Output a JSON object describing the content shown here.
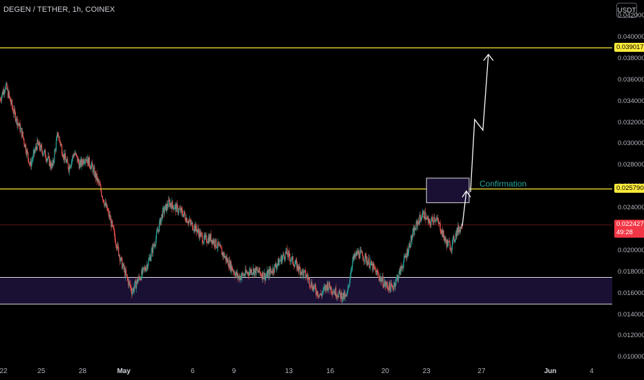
{
  "header": {
    "symbol_line": "DEGEN / TETHER, 1h, COINEX",
    "currency_button": "USDT"
  },
  "colors": {
    "background": "#000000",
    "up": "#26a69a",
    "down": "#ef5350",
    "level_line": "#ffeb3b",
    "zone_fill": "#1a1033",
    "zone_border": "#e0e0e0",
    "price_line": "#f23645",
    "arrow": "#ffffff"
  },
  "chart_data": {
    "type": "candlestick",
    "title": "DEGEN / TETHER, 1h, COINEX",
    "ylim": [
      0.0095,
      0.0435
    ],
    "y_ticks": [
      "0.042000",
      "0.040000",
      "0.038000",
      "0.036000",
      "0.034000",
      "0.032000",
      "0.030000",
      "0.028000",
      "0.026000",
      "0.024000",
      "0.022000",
      "0.020000",
      "0.018000",
      "0.016000",
      "0.014000",
      "0.012000",
      "0.010000"
    ],
    "y_tick_values": [
      0.042,
      0.04,
      0.038,
      0.036,
      0.034,
      0.032,
      0.03,
      0.028,
      0.026,
      0.024,
      0.022,
      0.02,
      0.018,
      0.016,
      0.014,
      0.012,
      0.01
    ],
    "x_ticks": [
      {
        "label": "22",
        "day": 22
      },
      {
        "label": "25",
        "day": 25
      },
      {
        "label": "28",
        "day": 28
      },
      {
        "label": "May",
        "day": 31,
        "bold": true
      },
      {
        "label": "6",
        "day": 36
      },
      {
        "label": "9",
        "day": 39
      },
      {
        "label": "13",
        "day": 43
      },
      {
        "label": "16",
        "day": 46
      },
      {
        "label": "20",
        "day": 50
      },
      {
        "label": "23",
        "day": 53
      },
      {
        "label": "27",
        "day": 57
      },
      {
        "label": "Jun",
        "day": 62,
        "bold": true
      },
      {
        "label": "4",
        "day": 65
      }
    ],
    "xlim": [
      22,
      66.5
    ],
    "price_path": [
      [
        22.0,
        0.0342
      ],
      [
        22.4,
        0.0355
      ],
      [
        23.0,
        0.033
      ],
      [
        23.6,
        0.031
      ],
      [
        24.2,
        0.028
      ],
      [
        24.7,
        0.03
      ],
      [
        25.3,
        0.029
      ],
      [
        25.8,
        0.0278
      ],
      [
        26.2,
        0.031
      ],
      [
        26.6,
        0.029
      ],
      [
        27.0,
        0.0278
      ],
      [
        27.4,
        0.0292
      ],
      [
        27.8,
        0.028
      ],
      [
        28.2,
        0.0288
      ],
      [
        28.7,
        0.0278
      ],
      [
        29.2,
        0.0262
      ],
      [
        29.6,
        0.0245
      ],
      [
        30.0,
        0.023
      ],
      [
        30.4,
        0.021
      ],
      [
        30.8,
        0.019
      ],
      [
        31.2,
        0.0175
      ],
      [
        31.6,
        0.0162
      ],
      [
        32.0,
        0.0172
      ],
      [
        32.4,
        0.018
      ],
      [
        32.8,
        0.019
      ],
      [
        33.3,
        0.021
      ],
      [
        33.8,
        0.0235
      ],
      [
        34.3,
        0.0245
      ],
      [
        34.8,
        0.024
      ],
      [
        35.3,
        0.0235
      ],
      [
        35.8,
        0.0226
      ],
      [
        36.3,
        0.022
      ],
      [
        36.8,
        0.021
      ],
      [
        37.3,
        0.0212
      ],
      [
        37.8,
        0.0205
      ],
      [
        38.3,
        0.0195
      ],
      [
        38.8,
        0.0185
      ],
      [
        39.3,
        0.0175
      ],
      [
        39.8,
        0.0178
      ],
      [
        40.3,
        0.0182
      ],
      [
        40.8,
        0.018
      ],
      [
        41.3,
        0.0176
      ],
      [
        41.8,
        0.0182
      ],
      [
        42.3,
        0.019
      ],
      [
        42.8,
        0.0198
      ],
      [
        43.3,
        0.019
      ],
      [
        43.8,
        0.0182
      ],
      [
        44.3,
        0.0176
      ],
      [
        44.8,
        0.0165
      ],
      [
        45.3,
        0.0158
      ],
      [
        45.8,
        0.0168
      ],
      [
        46.3,
        0.0162
      ],
      [
        46.8,
        0.0158
      ],
      [
        47.2,
        0.0156
      ],
      [
        47.6,
        0.019
      ],
      [
        48.0,
        0.0198
      ],
      [
        48.5,
        0.0194
      ],
      [
        49.0,
        0.0186
      ],
      [
        49.5,
        0.0177
      ],
      [
        50.0,
        0.0168
      ],
      [
        50.5,
        0.0165
      ],
      [
        51.0,
        0.0178
      ],
      [
        51.5,
        0.0195
      ],
      [
        52.0,
        0.0215
      ],
      [
        52.4,
        0.0228
      ],
      [
        52.8,
        0.0235
      ],
      [
        53.2,
        0.0225
      ],
      [
        53.6,
        0.0232
      ],
      [
        54.0,
        0.0222
      ],
      [
        54.4,
        0.0208
      ],
      [
        54.8,
        0.0204
      ],
      [
        55.2,
        0.0218
      ],
      [
        55.6,
        0.0224
      ]
    ],
    "horizontal_levels": [
      {
        "price": 0.039017,
        "label": "0.039017"
      },
      {
        "price": 0.02579,
        "label": "0.025790"
      }
    ],
    "support_zone": {
      "top": 0.0175,
      "bottom": 0.015
    },
    "confirmation_box": {
      "label": "Confirmation",
      "x0": 53.0,
      "x1": 56.1,
      "top": 0.0268,
      "bottom": 0.0245
    },
    "projection_path": [
      [
        55.6,
        0.0223
      ],
      [
        55.9,
        0.0256
      ],
      [
        56.2,
        0.0255
      ],
      [
        56.5,
        0.0323
      ],
      [
        57.1,
        0.0313
      ],
      [
        57.5,
        0.0384
      ]
    ],
    "current_price": {
      "price": 0.022427,
      "label": "0.022427",
      "countdown": "49:28"
    }
  }
}
